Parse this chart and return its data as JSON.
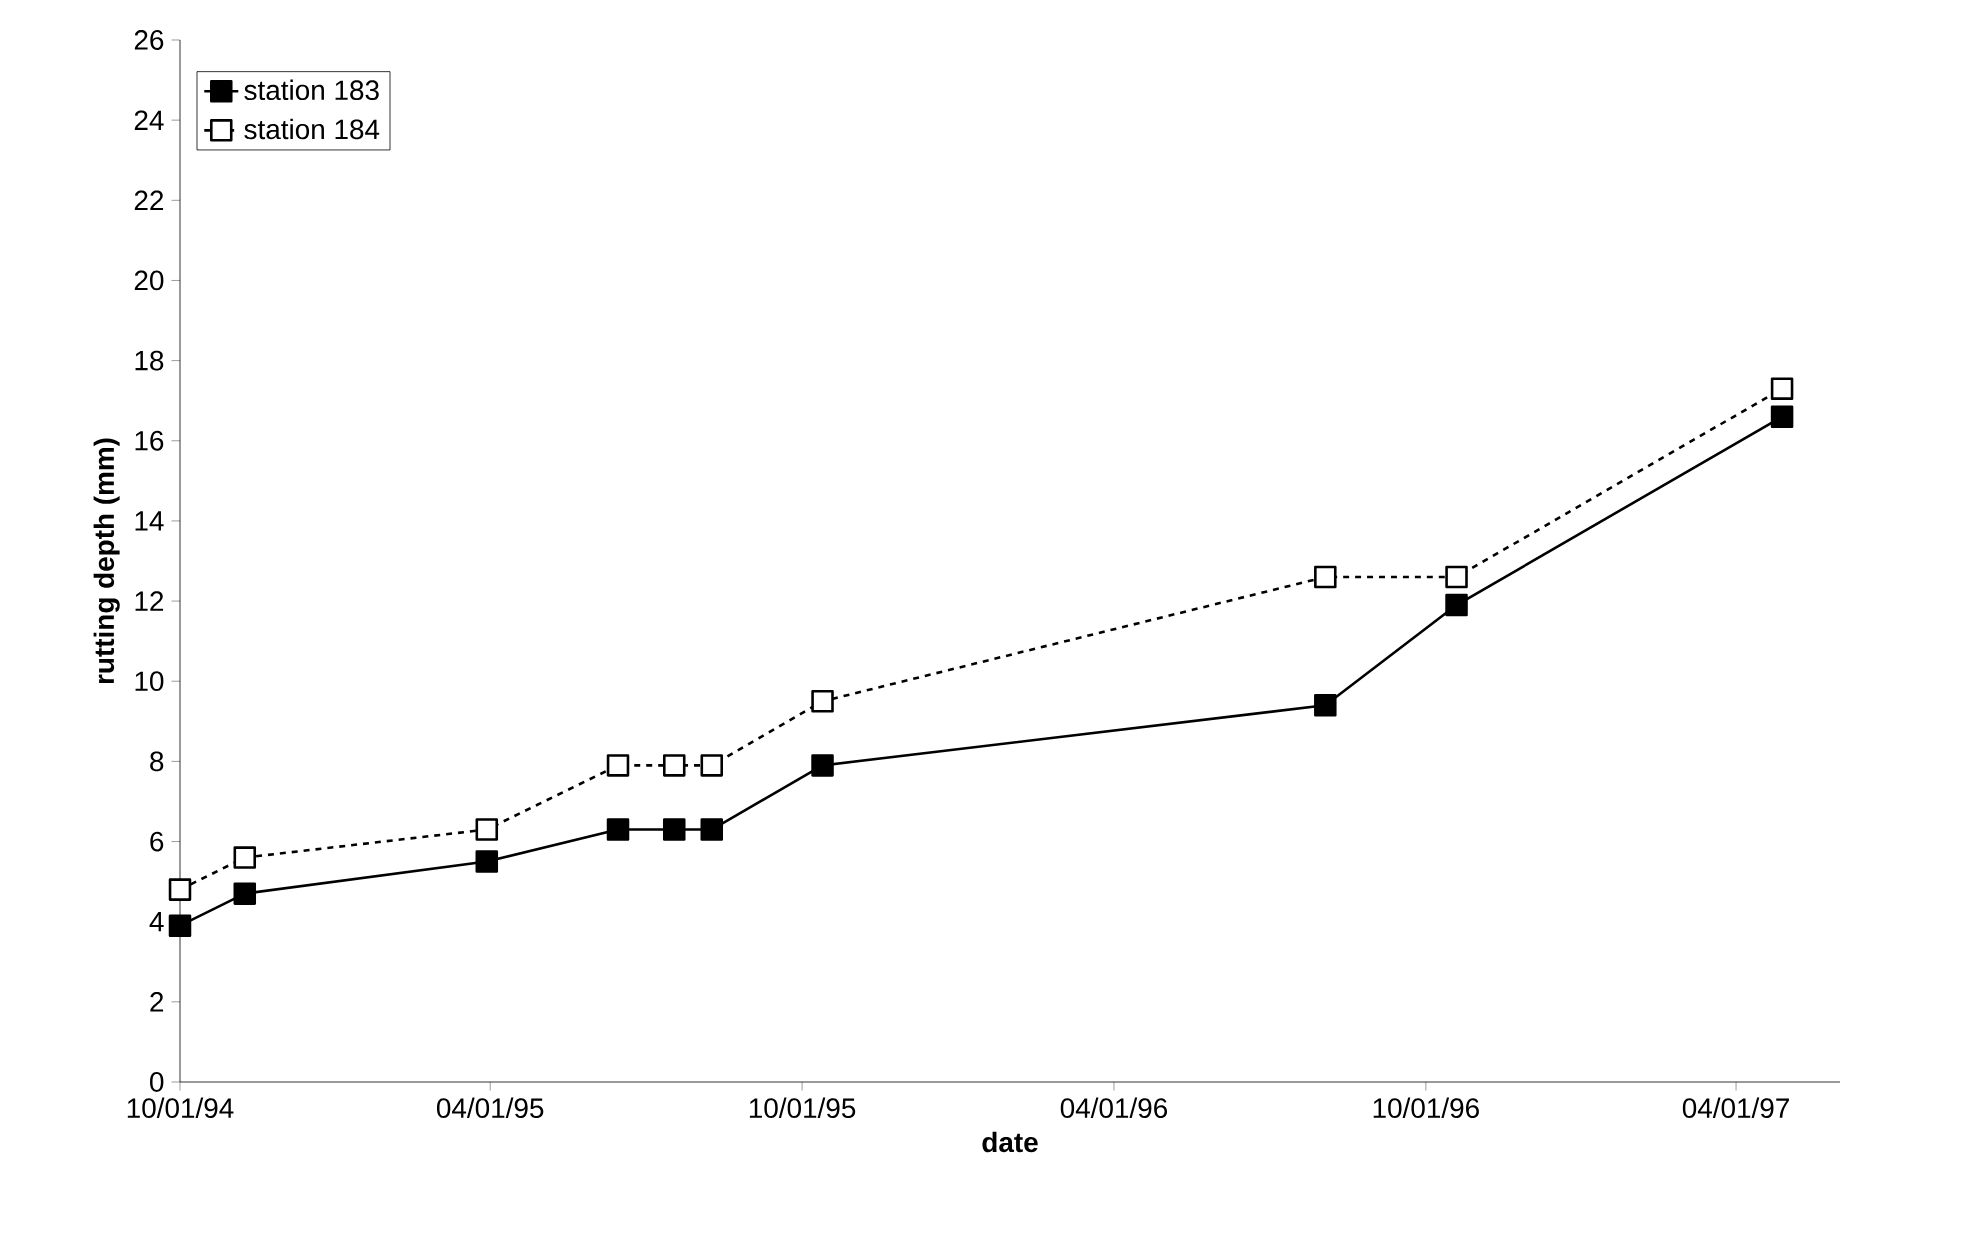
{
  "chart_data": {
    "type": "line",
    "xlabel": "date",
    "ylabel": "rutting depth (mm)",
    "x": [
      "1994-10-01",
      "1994-11-08",
      "1995-03-30",
      "1995-06-15",
      "1995-07-18",
      "1995-08-09",
      "1995-10-13",
      "1996-08-03",
      "1996-10-19",
      "1997-04-28"
    ],
    "series": [
      {
        "name": "station 183",
        "color": "#000000",
        "line_style": "solid",
        "values": [
          3.9,
          4.7,
          5.5,
          6.3,
          6.3,
          6.3,
          7.9,
          9.4,
          11.9,
          16.6
        ]
      },
      {
        "name": "station 184",
        "color": "#000000",
        "line_style": "dashed",
        "values": [
          4.8,
          5.6,
          6.3,
          7.9,
          7.9,
          7.9,
          9.5,
          12.6,
          12.6,
          17.3
        ]
      }
    ],
    "xlim": [
      "1994-10-01",
      "1997-06-01"
    ],
    "xticks": [
      {
        "value": "1994-10-01",
        "label": "10/01/94"
      },
      {
        "value": "1995-04-01",
        "label": "04/01/95"
      },
      {
        "value": "1995-10-01",
        "label": "10/01/95"
      },
      {
        "value": "1996-04-01",
        "label": "04/01/96"
      },
      {
        "value": "1996-10-01",
        "label": "10/01/96"
      },
      {
        "value": "1997-04-01",
        "label": "04/01/97"
      }
    ],
    "ylim": [
      0,
      26
    ],
    "yticks": [
      0,
      2,
      4,
      6,
      8,
      10,
      12,
      14,
      16,
      18,
      20,
      22,
      24,
      26
    ],
    "marker": "square",
    "grid": false,
    "legend": "top left"
  }
}
